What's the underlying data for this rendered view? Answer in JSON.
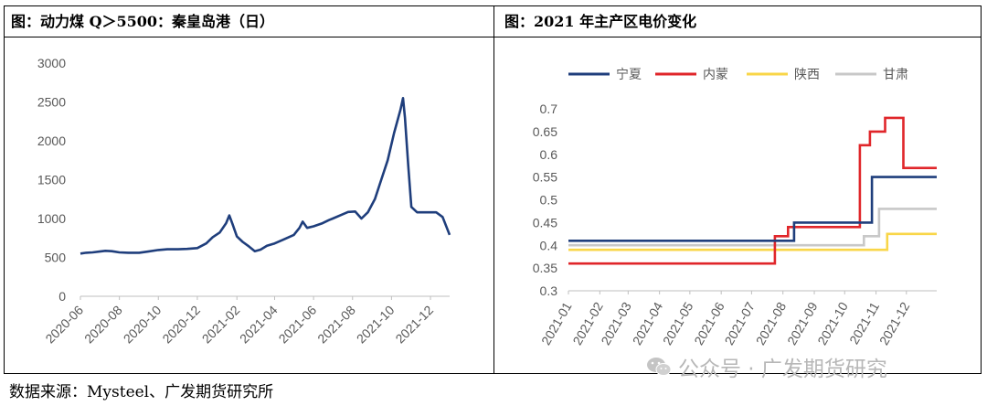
{
  "left_panel": {
    "title": "图：动力煤 Q＞5500：秦皇岛港（日）"
  },
  "right_panel": {
    "title": "图：2021 年主产区电价变化"
  },
  "source": "数据来源：Mysteel、广发期货研究所",
  "watermark": "公众号 · 广发期货研究",
  "chart_data": [
    {
      "type": "line",
      "title": "动力煤 Q＞5500：秦皇岛港（日）",
      "x_ticks": [
        "2020-06",
        "2020-08",
        "2020-10",
        "2020-12",
        "2021-02",
        "2021-04",
        "2021-06",
        "2021-08",
        "2021-10",
        "2021-12"
      ],
      "y_ticks": [
        0,
        500,
        1000,
        1500,
        2000,
        2500,
        3000
      ],
      "ylim": [
        0,
        3000
      ],
      "xlim": [
        "2020-06-01",
        "2021-12-31"
      ],
      "grid": false,
      "color": "#1f3e7c",
      "series": [
        {
          "points": [
            [
              "2020-06-01",
              550
            ],
            [
              "2020-06-10",
              560
            ],
            [
              "2020-06-20",
              565
            ],
            [
              "2020-07-01",
              575
            ],
            [
              "2020-07-10",
              585
            ],
            [
              "2020-07-20",
              580
            ],
            [
              "2020-08-01",
              565
            ],
            [
              "2020-08-15",
              560
            ],
            [
              "2020-09-01",
              560
            ],
            [
              "2020-09-15",
              575
            ],
            [
              "2020-10-01",
              595
            ],
            [
              "2020-10-15",
              605
            ],
            [
              "2020-11-01",
              605
            ],
            [
              "2020-11-15",
              610
            ],
            [
              "2020-12-01",
              620
            ],
            [
              "2020-12-15",
              680
            ],
            [
              "2020-12-25",
              760
            ],
            [
              "2021-01-05",
              820
            ],
            [
              "2021-01-15",
              940
            ],
            [
              "2021-01-20",
              1040
            ],
            [
              "2021-01-25",
              930
            ],
            [
              "2021-02-01",
              770
            ],
            [
              "2021-02-10",
              700
            ],
            [
              "2021-02-20",
              640
            ],
            [
              "2021-03-01",
              580
            ],
            [
              "2021-03-10",
              600
            ],
            [
              "2021-03-20",
              650
            ],
            [
              "2021-04-01",
              680
            ],
            [
              "2021-04-15",
              730
            ],
            [
              "2021-05-01",
              790
            ],
            [
              "2021-05-10",
              880
            ],
            [
              "2021-05-15",
              960
            ],
            [
              "2021-05-22",
              880
            ],
            [
              "2021-06-01",
              900
            ],
            [
              "2021-06-15",
              940
            ],
            [
              "2021-06-25",
              980
            ],
            [
              "2021-07-01",
              1000
            ],
            [
              "2021-07-15",
              1050
            ],
            [
              "2021-07-25",
              1085
            ],
            [
              "2021-08-05",
              1090
            ],
            [
              "2021-08-15",
              1000
            ],
            [
              "2021-08-25",
              1080
            ],
            [
              "2021-09-05",
              1250
            ],
            [
              "2021-09-15",
              1500
            ],
            [
              "2021-09-25",
              1750
            ],
            [
              "2021-10-05",
              2100
            ],
            [
              "2021-10-15",
              2400
            ],
            [
              "2021-10-19",
              2550
            ],
            [
              "2021-10-22",
              2300
            ],
            [
              "2021-10-27",
              1700
            ],
            [
              "2021-11-01",
              1150
            ],
            [
              "2021-11-10",
              1080
            ],
            [
              "2021-11-20",
              1080
            ],
            [
              "2021-12-01",
              1080
            ],
            [
              "2021-12-10",
              1080
            ],
            [
              "2021-12-20",
              1020
            ],
            [
              "2021-12-31",
              790
            ]
          ]
        }
      ]
    },
    {
      "type": "line",
      "title": "2021 年主产区电价变化",
      "x_ticks": [
        "2021-01",
        "2021-02",
        "2021-03",
        "2021-04",
        "2021-05",
        "2021-06",
        "2021-07",
        "2021-08",
        "2021-09",
        "2021-10",
        "2021-11",
        "2021-12"
      ],
      "y_ticks": [
        "0.3",
        "0.35",
        "0.4",
        "0.45",
        "0.5",
        "0.55",
        "0.6",
        "0.65",
        "0.7"
      ],
      "ylim": [
        0.3,
        0.7
      ],
      "xlim": [
        "2021-01-01",
        "2021-12-31"
      ],
      "grid": false,
      "legend": "top",
      "series": [
        {
          "name": "宁夏",
          "color": "#1f3e7c",
          "steps": [
            [
              "2021-01-01",
              0.41
            ],
            [
              "2021-08-12",
              0.45
            ],
            [
              "2021-10-28",
              0.55
            ],
            [
              "2021-12-31",
              0.55
            ]
          ]
        },
        {
          "name": "内蒙",
          "color": "#e0262a",
          "steps": [
            [
              "2021-01-01",
              0.36
            ],
            [
              "2021-07-24",
              0.42
            ],
            [
              "2021-08-06",
              0.44
            ],
            [
              "2021-10-16",
              0.62
            ],
            [
              "2021-10-26",
              0.65
            ],
            [
              "2021-11-10",
              0.68
            ],
            [
              "2021-11-28",
              0.57
            ],
            [
              "2021-12-31",
              0.57
            ]
          ]
        },
        {
          "name": "陕西",
          "color": "#f9d648",
          "steps": [
            [
              "2021-01-01",
              0.39
            ],
            [
              "2021-11-12",
              0.425
            ],
            [
              "2021-12-31",
              0.425
            ]
          ]
        },
        {
          "name": "甘肃",
          "color": "#c8c8c8",
          "steps": [
            [
              "2021-01-01",
              0.4
            ],
            [
              "2021-10-20",
              0.42
            ],
            [
              "2021-11-04",
              0.48
            ],
            [
              "2021-12-31",
              0.48
            ]
          ]
        }
      ]
    }
  ]
}
